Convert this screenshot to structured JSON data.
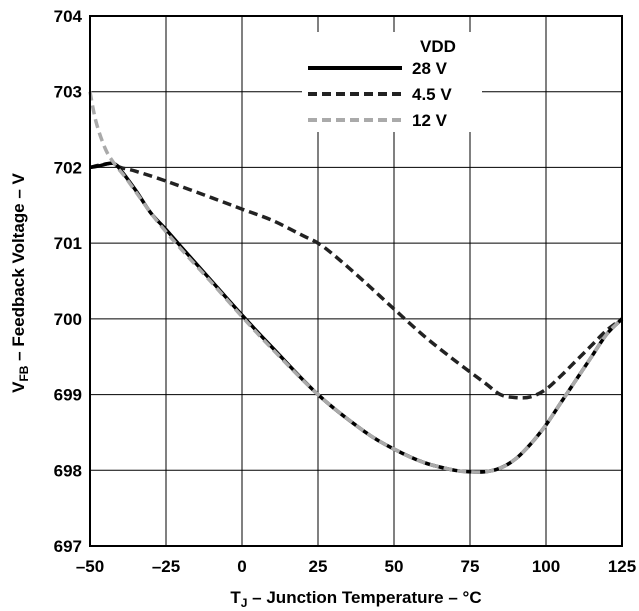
{
  "chart_data": {
    "type": "line",
    "xlabel": {
      "main": "T",
      "sub": "J",
      "rest": " – Junction Temperature – °C"
    },
    "ylabel": {
      "main": "V",
      "sub": "FB",
      "rest": " – Feedback Voltage – V"
    },
    "xlim": [
      -50,
      125
    ],
    "ylim": [
      697,
      704
    ],
    "xticks": [
      -50,
      -25,
      0,
      25,
      50,
      75,
      100,
      125
    ],
    "yticks": [
      697,
      698,
      699,
      700,
      701,
      702,
      703,
      704
    ],
    "xtick_labels": [
      "–50",
      "–25",
      "0",
      "25",
      "50",
      "75",
      "100",
      "125"
    ],
    "ytick_labels": [
      "697",
      "698",
      "699",
      "700",
      "701",
      "702",
      "703",
      "704"
    ],
    "grid": true,
    "legend": {
      "title": "VDD",
      "position": "top-right"
    },
    "series": [
      {
        "name": "28 V",
        "color": "#000000",
        "style": "solid",
        "x": [
          -50,
          -47,
          -44,
          -42,
          -40,
          -35,
          -30,
          -25,
          -20,
          -10,
          0,
          10,
          25,
          40,
          50,
          60,
          70,
          75,
          80,
          85,
          90,
          95,
          100,
          105,
          110,
          115,
          120,
          125
        ],
        "y": [
          702.0,
          702.02,
          702.05,
          702.05,
          701.97,
          701.7,
          701.4,
          701.18,
          700.95,
          700.5,
          700.05,
          699.62,
          699.0,
          698.52,
          698.28,
          698.1,
          698.0,
          697.98,
          697.98,
          698.03,
          698.15,
          698.35,
          698.6,
          698.9,
          699.2,
          699.5,
          699.8,
          700.0
        ]
      },
      {
        "name": "4.5 V",
        "color": "#222222",
        "style": "dashed",
        "x": [
          -50,
          -47,
          -44,
          -42,
          -40,
          -35,
          -25,
          -10,
          0,
          10,
          20,
          25,
          30,
          40,
          50,
          60,
          70,
          80,
          85,
          90,
          95,
          100,
          105,
          110,
          115,
          120,
          125
        ],
        "y": [
          702.0,
          702.03,
          702.05,
          702.05,
          702.0,
          701.95,
          701.82,
          701.6,
          701.45,
          701.3,
          701.1,
          701.0,
          700.85,
          700.5,
          700.13,
          699.77,
          699.45,
          699.15,
          699.0,
          698.96,
          698.97,
          699.07,
          699.25,
          699.45,
          699.65,
          699.85,
          700.0
        ]
      },
      {
        "name": "12 V",
        "color": "#aaaaaa",
        "style": "dashed",
        "x": [
          -50,
          -48,
          -45,
          -42,
          -38,
          -30,
          -25,
          -20,
          -10,
          0,
          10,
          25,
          40,
          50,
          60,
          70,
          75,
          80,
          85,
          90,
          95,
          100,
          105,
          110,
          115,
          120,
          125
        ],
        "y": [
          703.0,
          702.6,
          702.25,
          702.05,
          701.85,
          701.4,
          701.15,
          700.92,
          700.48,
          700.03,
          699.6,
          699.0,
          698.52,
          698.28,
          698.1,
          698.0,
          697.98,
          697.98,
          698.03,
          698.15,
          698.35,
          698.6,
          698.9,
          699.2,
          699.5,
          699.8,
          700.0
        ]
      }
    ]
  }
}
